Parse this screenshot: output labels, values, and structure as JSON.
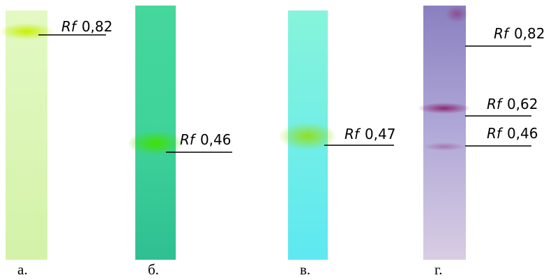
{
  "panels": [
    {
      "label": "а.",
      "annotations": [
        {
          "symbol": "Rf",
          "value": "0,82"
        }
      ]
    },
    {
      "label": "б.",
      "annotations": [
        {
          "symbol": "Rf",
          "value": "0,46"
        }
      ]
    },
    {
      "label": "в.",
      "annotations": [
        {
          "symbol": "Rf",
          "value": "0,47"
        }
      ]
    },
    {
      "label": "г.",
      "annotations": [
        {
          "symbol": "Rf",
          "value": "0,82"
        },
        {
          "symbol": "Rf",
          "value": "0,62"
        },
        {
          "symbol": "Rf",
          "value": "0,46"
        }
      ]
    }
  ]
}
